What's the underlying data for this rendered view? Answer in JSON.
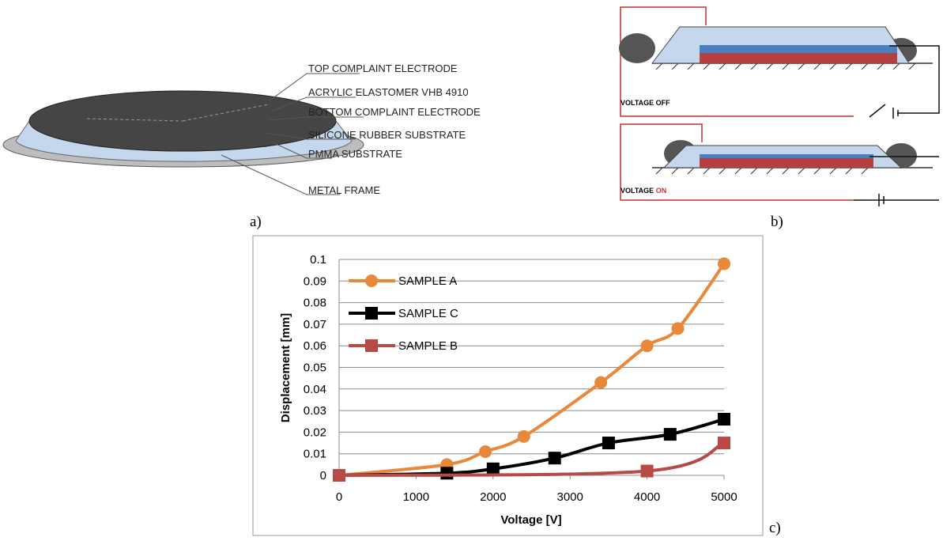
{
  "panel_a": {
    "label": "a)",
    "layers": [
      "TOP COMPLAINT ELECTRODE",
      "ACRYLIC ELASTOMER VHB 4910",
      "BOTTOM COMPLAINT ELECTRODE",
      "SILICONE RUBBER SUBSTRATE",
      "PMMA SUBSTRATE",
      "METAL FRAME"
    ]
  },
  "panel_b": {
    "label": "b)",
    "state_off": "VOLTAGE OFF",
    "state_on_prefix": "VOLTAGE",
    "state_on_word": "ON"
  },
  "panel_c": {
    "label": "c)"
  },
  "chart_data": {
    "type": "line",
    "x_label": "Voltage [V]",
    "y_label": "Displacement [mm]",
    "xlim": [
      0,
      5000
    ],
    "xticks": [
      0,
      1000,
      2000,
      3000,
      4000,
      5000
    ],
    "ylim": [
      0,
      0.1
    ],
    "yticks": [
      0,
      0.01,
      0.02,
      0.03,
      0.04,
      0.05,
      0.06,
      0.07,
      0.08,
      0.09,
      0.1
    ],
    "grid": true,
    "legend": "upper-left",
    "series": [
      {
        "name": "SAMPLE A",
        "color": "#e8883a",
        "marker": "circle",
        "x": [
          0,
          1400,
          1900,
          2400,
          3400,
          4000,
          4400,
          5000
        ],
        "values": [
          0,
          0.005,
          0.011,
          0.018,
          0.043,
          0.06,
          0.068,
          0.098
        ]
      },
      {
        "name": "SAMPLE C",
        "color": "#000000",
        "marker": "square",
        "x": [
          0,
          1400,
          2000,
          2800,
          3500,
          4300,
          5000
        ],
        "values": [
          0,
          0.001,
          0.003,
          0.008,
          0.015,
          0.019,
          0.026
        ]
      },
      {
        "name": "SAMPLE B",
        "color": "#b84a45",
        "marker": "square",
        "x": [
          0,
          4000,
          5000
        ],
        "values": [
          0,
          0.002,
          0.015
        ]
      }
    ]
  }
}
